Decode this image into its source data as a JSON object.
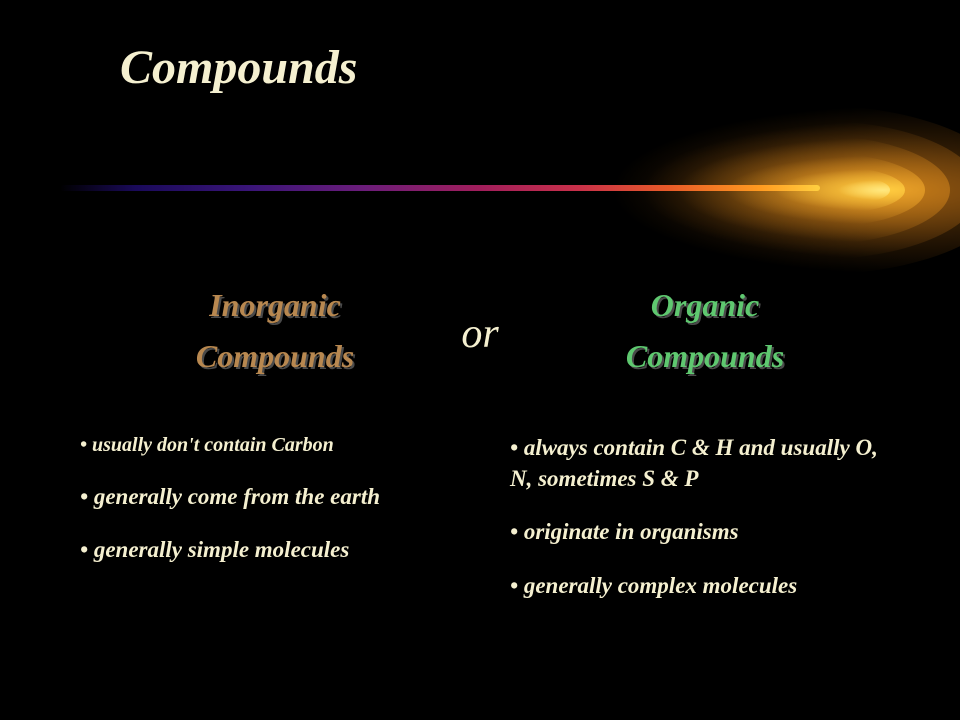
{
  "title": "Compounds",
  "or_text": "or",
  "left": {
    "heading_line1": "Inorganic",
    "heading_line2": "Compounds",
    "heading_color": "#b88850",
    "bullets": [
      {
        "text": "usually don't contain Carbon",
        "small": true
      },
      {
        "text": "generally come from the earth",
        "small": false
      },
      {
        "text": "generally simple molecules",
        "small": false
      }
    ]
  },
  "right": {
    "heading_line1": "Organic",
    "heading_line2": "Compounds",
    "heading_color": "#5fc870",
    "bullets": [
      {
        "text": "always contain C & H and usually O, N, sometimes S & P",
        "small": false
      },
      {
        "text": "originate in organisms",
        "small": false
      },
      {
        "text": "generally complex molecules",
        "small": false
      }
    ]
  },
  "styles": {
    "background": "#000000",
    "title_color": "#f5f0d0",
    "bullet_color": "#f5f0d0",
    "title_fontsize": 48,
    "heading_fontsize": 32,
    "bullet_fontsize": 23,
    "comet_gradient": [
      "#000000",
      "#1a0a5a",
      "#3a1578",
      "#6b1d7a",
      "#a01e5c",
      "#c8304a",
      "#e85a28",
      "#ff9a20",
      "#ffd040"
    ],
    "comet_head_colors": [
      "#5a3408",
      "#8a5210",
      "#c07818",
      "#e8a028",
      "#ffcc40",
      "#ffe880"
    ]
  }
}
